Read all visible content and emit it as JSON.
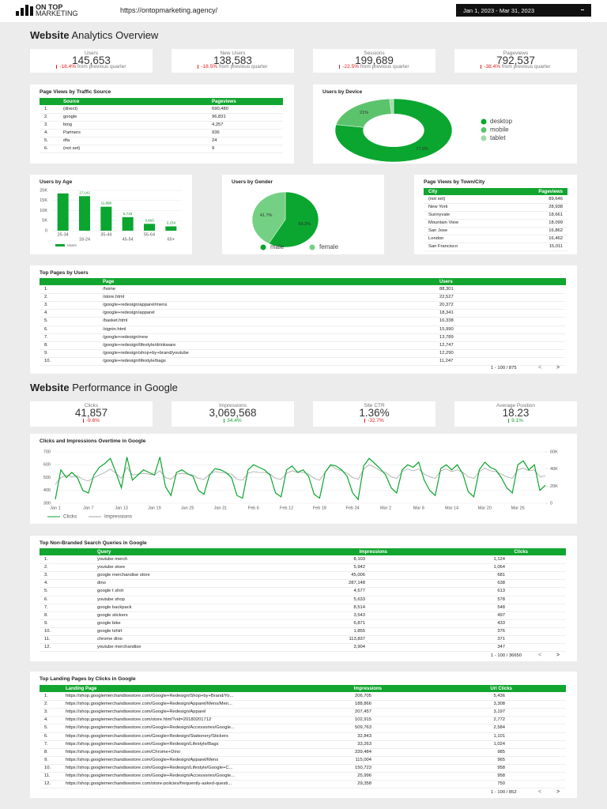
{
  "header": {
    "logo_top": "ON TOP",
    "logo_bottom": "MARKETING",
    "url": "https://ontopmarketing.agency/",
    "date_range": "Jan 1, 2023 - Mar 31, 2023"
  },
  "section1": {
    "title_bold": "Website",
    "title_rest": "Analytics Overview"
  },
  "kpis1": [
    {
      "label": "Users",
      "value": "145,653",
      "change": "-18.4%",
      "note": "from previous quarter"
    },
    {
      "label": "New Users",
      "value": "138,583",
      "change": "-18.5%",
      "note": "from previous quarter"
    },
    {
      "label": "Sessions",
      "value": "199,689",
      "change": "-22.5%",
      "note": "from previous quarter"
    },
    {
      "label": "Pageviews",
      "value": "792,537",
      "change": "-38.4%",
      "note": "from previous quarter"
    }
  ],
  "traffic_source": {
    "title": "Page Views by Traffic Source",
    "columns": [
      "Source",
      "Pageviews"
    ],
    "rows": [
      [
        "1.",
        "(direct)",
        "690,480"
      ],
      [
        "2.",
        "google",
        "96,831"
      ],
      [
        "3.",
        "bing",
        "4,257"
      ],
      [
        "4.",
        "Partners",
        "936"
      ],
      [
        "5.",
        "dfa",
        "24"
      ],
      [
        "6.",
        "(not set)",
        "9"
      ]
    ]
  },
  "device": {
    "type": "donut",
    "title": "Users by Device",
    "categories": [
      "desktop",
      "mobile",
      "tablet"
    ],
    "values": [
      77.9,
      21,
      1.1
    ],
    "value_labels": [
      "77.9%",
      "21%",
      null
    ],
    "colors": [
      "#0aa62f",
      "#5cc36d",
      "#9fdca9"
    ]
  },
  "age": {
    "type": "bar",
    "title": "Users by Age",
    "categories": [
      "25-34",
      "18-24",
      "35-44",
      "45-54",
      "55-64",
      "65+"
    ],
    "values": [
      18500,
      17142,
      11898,
      6718,
      3403,
      2154
    ],
    "value_labels": [
      null,
      "17,142",
      "11,898",
      "6,718",
      "3,403",
      "2,154"
    ],
    "ylim": [
      0,
      20000
    ],
    "yticks": [
      0,
      {
        "value": 5000,
        "label": "5K"
      },
      {
        "value": 10000,
        "label": "10K"
      },
      {
        "value": 15000,
        "label": "15K"
      },
      {
        "value": 20000,
        "label": "20K"
      }
    ],
    "legend": "Users",
    "color": "#0aa62f",
    "grid": true
  },
  "gender": {
    "type": "pie",
    "title": "Users by Gender",
    "categories": [
      "male",
      "female"
    ],
    "values": [
      58.3,
      41.7
    ],
    "value_labels": [
      "58.3%",
      "41.7%"
    ],
    "colors": [
      "#0aa62f",
      "#74d083"
    ]
  },
  "city": {
    "title": "Page Views by Town/City",
    "columns": [
      "City",
      "Pageviews"
    ],
    "rows": [
      [
        "(not set)",
        "89,646"
      ],
      [
        "New York",
        "28,938"
      ],
      [
        "Sunnyvale",
        "18,661"
      ],
      [
        "Mountain View",
        "18,099"
      ],
      [
        "San Jose",
        "16,862"
      ],
      [
        "London",
        "16,462"
      ],
      [
        "San Francisco",
        "15,011"
      ]
    ]
  },
  "top_pages": {
    "title": "Top Pages by Users",
    "columns": [
      "Page",
      "Users"
    ],
    "rows": [
      [
        "1.",
        "/home",
        "88,301"
      ],
      [
        "2.",
        "/store.html",
        "22,527"
      ],
      [
        "3.",
        "/google+redesign/apparel/mens",
        "20,372"
      ],
      [
        "4.",
        "/google+redesign/apparel",
        "18,341"
      ],
      [
        "5.",
        "/basket.html",
        "16,338"
      ],
      [
        "6.",
        "/signin.html",
        "15,990"
      ],
      [
        "7.",
        "/google+redesign/new",
        "13,789"
      ],
      [
        "8.",
        "/google+redesign/lifestyle/drinkware",
        "12,747"
      ],
      [
        "9.",
        "/google+redesign/shop+by+brand/youtube",
        "12,290"
      ],
      [
        "10.",
        "/google+redesign/lifestyle/bags",
        "11,247"
      ]
    ],
    "pagination": {
      "range": "1 - 100 / 875",
      "prev": "<",
      "next": ">"
    }
  },
  "section2": {
    "title_bold": "Website",
    "title_rest": "Performance in Google"
  },
  "kpis2": [
    {
      "label": "Clicks",
      "value": "41,857",
      "change": "-9.6%"
    },
    {
      "label": "Impressions",
      "value": "3,069,568",
      "change": "34.4%"
    },
    {
      "label": "Site CTR",
      "value": "1.36%",
      "change": "-32.7%"
    },
    {
      "label": "Average Position",
      "value": "18.23",
      "change": "9.1%"
    }
  ],
  "clicks_chart": {
    "type": "line",
    "title": "Clicks and Impressions Overtime in Google",
    "categories": [
      "Jan 1",
      null,
      null,
      null,
      null,
      null,
      "Jan 7",
      null,
      null,
      null,
      null,
      null,
      "Jan 13",
      null,
      null,
      null,
      null,
      null,
      "Jan 19",
      null,
      null,
      null,
      null,
      null,
      "Jan 25",
      null,
      null,
      null,
      null,
      null,
      "Jan 31",
      null,
      null,
      null,
      null,
      null,
      "Feb 6",
      null,
      null,
      null,
      null,
      null,
      "Feb 12",
      null,
      null,
      null,
      null,
      null,
      "Feb 18",
      null,
      null,
      null,
      null,
      null,
      "Feb 24",
      null,
      null,
      null,
      null,
      null,
      "Mar 2",
      null,
      null,
      null,
      null,
      null,
      "Mar 8",
      null,
      null,
      null,
      null,
      null,
      "Mar 14",
      null,
      null,
      null,
      null,
      null,
      "Mar 20",
      null,
      null,
      null,
      null,
      null,
      "Mar 26",
      null,
      null,
      null,
      null,
      null
    ],
    "series": [
      {
        "name": "Clicks",
        "color": "#0aa62f",
        "axis": "y",
        "values": [
          330,
          560,
          500,
          540,
          500,
          400,
          380,
          520,
          580,
          610,
          650,
          540,
          420,
          660,
          480,
          520,
          560,
          540,
          520,
          660,
          430,
          360,
          540,
          560,
          530,
          510,
          400,
          370,
          520,
          570,
          560,
          540,
          500,
          360,
          340,
          560,
          600,
          580,
          560,
          520,
          380,
          350,
          560,
          590,
          540,
          560,
          510,
          370,
          340,
          540,
          600,
          590,
          560,
          510,
          380,
          330,
          590,
          650,
          610,
          570,
          520,
          420,
          380,
          560,
          600,
          580,
          620,
          480,
          400,
          360,
          570,
          600,
          560,
          600,
          530,
          390,
          350,
          560,
          620,
          580,
          560,
          500,
          420,
          380,
          600,
          630,
          560,
          600,
          400,
          440
        ]
      },
      {
        "name": "Impressions",
        "color": "#a6a6a6",
        "axis": "y2",
        "values": [
          22000,
          30000,
          33000,
          31000,
          32000,
          28000,
          26000,
          30000,
          33000,
          36000,
          40000,
          35000,
          29000,
          42000,
          33000,
          34000,
          35000,
          34000,
          33000,
          38000,
          30000,
          28000,
          34000,
          35000,
          34000,
          33000,
          29000,
          28000,
          34000,
          37000,
          36000,
          35000,
          34000,
          28000,
          27000,
          35000,
          37000,
          36000,
          36000,
          34000,
          29000,
          28000,
          35000,
          38000,
          36000,
          36000,
          34000,
          29000,
          27000,
          36000,
          44000,
          40000,
          38000,
          35000,
          30000,
          28000,
          40000,
          45000,
          42000,
          38000,
          36000,
          31000,
          29000,
          37000,
          40000,
          38000,
          40000,
          34000,
          31000,
          29000,
          38000,
          40000,
          37000,
          39000,
          36000,
          31000,
          29000,
          37000,
          41000,
          38000,
          37000,
          34000,
          31000,
          29000,
          39000,
          41000,
          38000,
          39000,
          31000,
          32000
        ]
      }
    ],
    "ylim": [
      300,
      700
    ],
    "yticks": [
      300,
      400,
      500,
      600,
      700
    ],
    "y2lim": [
      0,
      60000
    ],
    "y2ticks": [
      0,
      {
        "value": 20000,
        "label": "20K"
      },
      {
        "value": 40000,
        "label": "40K"
      },
      {
        "value": 60000,
        "label": "60K"
      }
    ],
    "grid": true
  },
  "queries": {
    "title": "Top Non-Branded Search Queries in Google",
    "columns": [
      "Query",
      "Impressions",
      "Clicks"
    ],
    "rows": [
      [
        "1.",
        "youtube merch",
        "8,103",
        "1,124"
      ],
      [
        "2.",
        "youtube store",
        "5,942",
        "1,064"
      ],
      [
        "3.",
        "google merchandise store",
        "45,006",
        "681"
      ],
      [
        "4.",
        "dino",
        "287,148",
        "638"
      ],
      [
        "5.",
        "google t shirt",
        "4,577",
        "613"
      ],
      [
        "6.",
        "youtube shop",
        "5,633",
        "578"
      ],
      [
        "7.",
        "google backpack",
        "8,514",
        "548"
      ],
      [
        "8.",
        "google stickers",
        "3,543",
        "497"
      ],
      [
        "9.",
        "google bike",
        "6,871",
        "433"
      ],
      [
        "10.",
        "google tshirt",
        "1,855",
        "376"
      ],
      [
        "11.",
        "chrome dino",
        "113,837",
        "371"
      ],
      [
        "12.",
        "youtube merchandise",
        "3,904",
        "347"
      ]
    ],
    "pagination": {
      "range": "1 - 100 / 36650",
      "prev": "<",
      "next": ">"
    }
  },
  "landing": {
    "title": "Top Landing Pages by Clicks in Google",
    "columns": [
      "Landing Page",
      "Impressions",
      "Url Clicks"
    ],
    "rows": [
      [
        "1.",
        "https://shop.googlemerchandisestore.com/Google+Redesign/Shop+by+Brand/Yo...",
        "206,705",
        "5,436"
      ],
      [
        "2.",
        "https://shop.googlemerchandisestore.com/Google+Redesign/Apparel/Mens/Men...",
        "188,866",
        "3,308"
      ],
      [
        "3.",
        "https://shop.googlemerchandisestore.com/Google+Redesign/Apparel",
        "207,457",
        "3,197"
      ],
      [
        "4.",
        "https://shop.googlemerchandisestore.com/store.html?vid=20180201712",
        "102,915",
        "2,772"
      ],
      [
        "5.",
        "https://shop.googlemerchandisestore.com/Google+Redesign/Accessories/Google...",
        "509,763",
        "2,584"
      ],
      [
        "6.",
        "https://shop.googlemerchandisestore.com/Google+Redesign/Stationery/Stickers",
        "32,843",
        "1,101"
      ],
      [
        "7.",
        "https://shop.googlemerchandisestore.com/Google+Redesign/Lifestyle/Bags",
        "33,263",
        "1,024"
      ],
      [
        "8.",
        "https://shop.googlemerchandisestore.com/Chrome+Dino",
        "339,484",
        "985"
      ],
      [
        "9.",
        "https://shop.googlemerchandisestore.com/Google+Redesign/Apparel/Mens",
        "115,004",
        "965"
      ],
      [
        "10.",
        "https://shop.googlemerchandisestore.com/Google+Redesign/Lifestyle/Google+C...",
        "150,723",
        "958"
      ],
      [
        "11.",
        "https://shop.googlemerchandisestore.com/Google+Redesign/Accessories/Google...",
        "25,996",
        "958"
      ],
      [
        "12.",
        "https://shop.googlemerchandisestore.com/store-policies/frequently-asked-questi...",
        "29,358",
        "750"
      ]
    ],
    "pagination": {
      "range": "1 - 100 / 852",
      "prev": "<",
      "next": ">"
    }
  }
}
